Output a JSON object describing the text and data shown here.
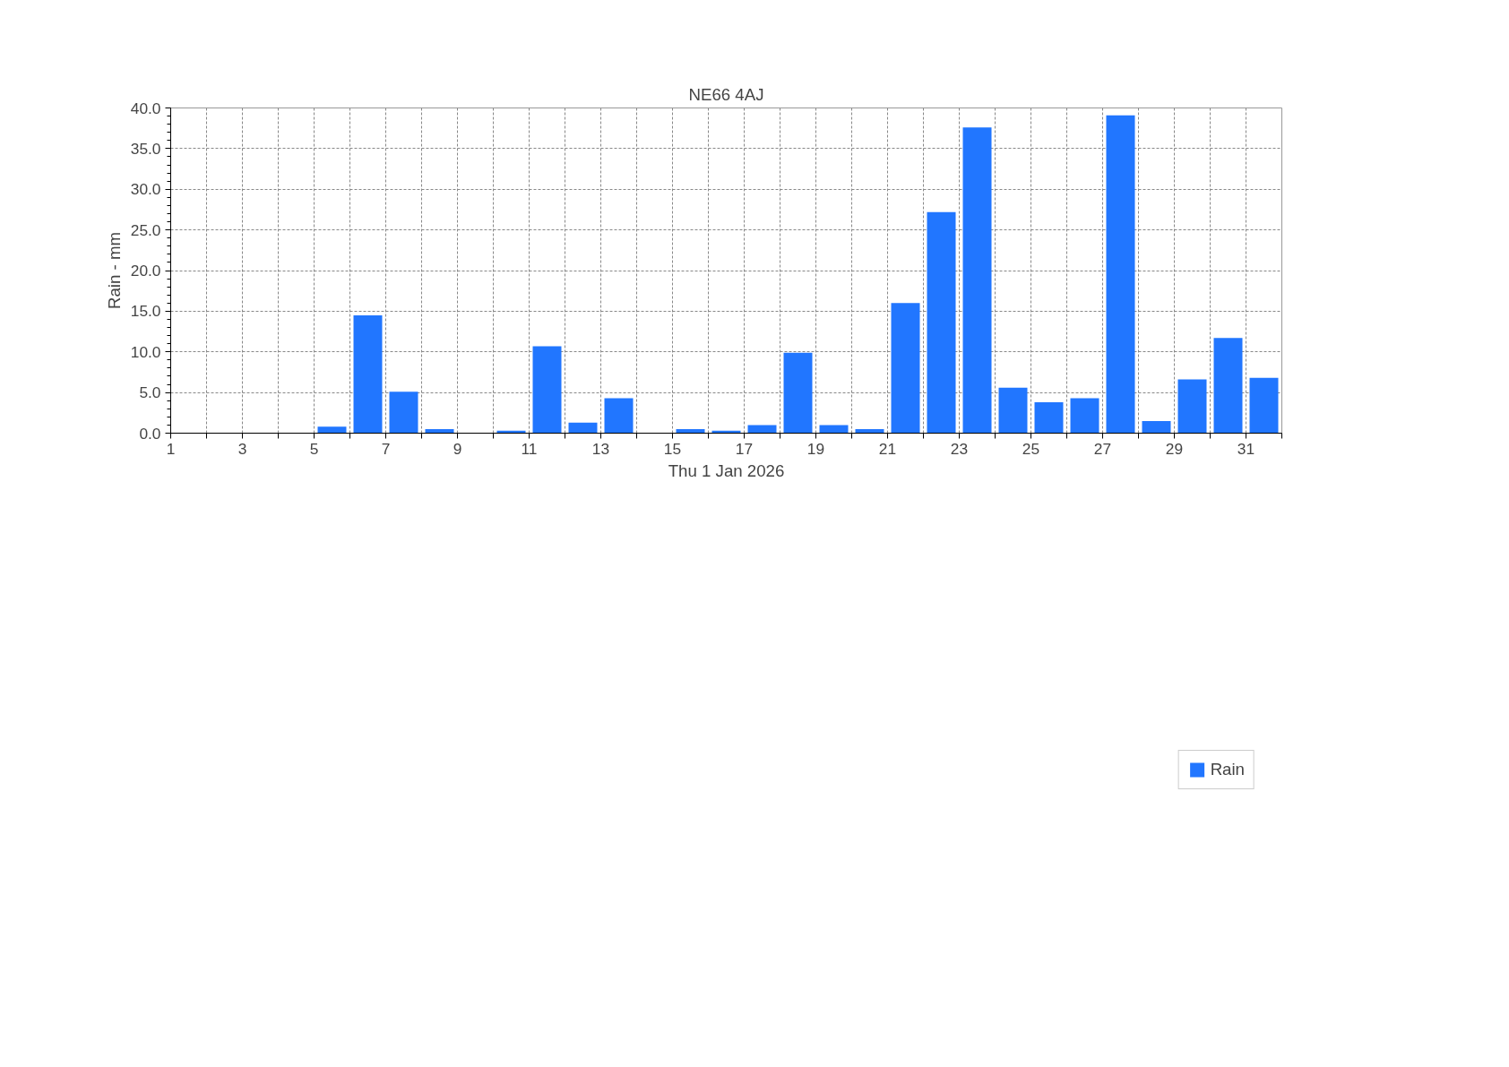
{
  "chart_data": {
    "type": "bar",
    "title": "NE66 4AJ",
    "xlabel": "Thu 1 Jan 2026",
    "ylabel": "Rain - mm",
    "x": [
      1.5,
      2.5,
      3.5,
      4.5,
      5.5,
      6.5,
      7.5,
      8.5,
      9.5,
      10.5,
      11.5,
      12.5,
      13.5,
      14.5,
      15.5,
      16.5,
      17.5,
      18.5,
      19.5,
      20.5,
      21.5,
      22.5,
      23.5,
      24.5,
      25.5,
      26.5,
      27.5,
      28.5,
      29.5,
      30.5,
      31.5
    ],
    "series": [
      {
        "name": "Rain",
        "color": "#2176ff",
        "values": [
          0,
          0,
          0,
          0,
          0.8,
          14.5,
          5.1,
          0.5,
          0,
          0.3,
          10.7,
          1.3,
          4.3,
          0,
          0.5,
          0.3,
          1.0,
          9.9,
          1.0,
          0.5,
          16.0,
          27.2,
          37.6,
          5.6,
          3.8,
          4.3,
          39.1,
          1.5,
          6.6,
          11.7,
          6.8
        ]
      }
    ],
    "xlim": [
      1,
      32
    ],
    "xticks": [
      1,
      {
        "value": 2,
        "label": null
      },
      3,
      {
        "value": 4,
        "label": null
      },
      5,
      {
        "value": 6,
        "label": null
      },
      7,
      {
        "value": 8,
        "label": null
      },
      9,
      {
        "value": 10,
        "label": null
      },
      11,
      {
        "value": 12,
        "label": null
      },
      13,
      {
        "value": 14,
        "label": null
      },
      15,
      {
        "value": 16,
        "label": null
      },
      17,
      {
        "value": 18,
        "label": null
      },
      19,
      {
        "value": 20,
        "label": null
      },
      21,
      {
        "value": 22,
        "label": null
      },
      23,
      {
        "value": 24,
        "label": null
      },
      25,
      {
        "value": 26,
        "label": null
      },
      27,
      {
        "value": 28,
        "label": null
      },
      29,
      {
        "value": 30,
        "label": null
      },
      31,
      {
        "value": 32,
        "label": null
      }
    ],
    "ylim": [
      0,
      40
    ],
    "yticks": [
      {
        "value": 0,
        "label": "0.0"
      },
      {
        "value": 5,
        "label": "5.0"
      },
      {
        "value": 10,
        "label": "10.0"
      },
      {
        "value": 15,
        "label": "15.0"
      },
      {
        "value": 20,
        "label": "20.0"
      },
      {
        "value": 25,
        "label": "25.0"
      },
      {
        "value": 30,
        "label": "30.0"
      },
      {
        "value": 35,
        "label": "35.0"
      },
      {
        "value": 40,
        "label": "40.0"
      }
    ],
    "grid": true,
    "legend": "bottom"
  }
}
